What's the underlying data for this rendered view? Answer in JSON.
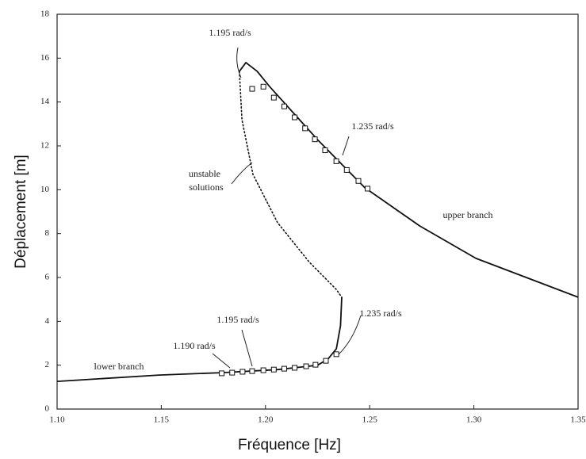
{
  "chart_data": {
    "type": "line",
    "x_label": "Fréquence [Hz]",
    "y_label": "Déplacement [m]",
    "xlim": [
      1.1,
      1.35
    ],
    "ylim": [
      0,
      18
    ],
    "xticks": [
      {
        "value": 1.1,
        "label": "1.10"
      },
      {
        "value": 1.15,
        "label": "1.15"
      },
      {
        "value": 1.2,
        "label": "1.20"
      },
      {
        "value": 1.25,
        "label": "1.25"
      },
      {
        "value": 1.3,
        "label": "1.30"
      },
      {
        "value": 1.35,
        "label": "1.35"
      }
    ],
    "yticks": [
      0,
      2,
      4,
      6,
      8,
      10,
      12,
      14,
      16,
      18
    ],
    "annotations": [
      "1.195 rad/s",
      "1.235 rad/s",
      "unstable",
      "solutions",
      "upper branch",
      "1.235 rad/s",
      "1.195 rad/s",
      "1.190 rad/s",
      "lower branch"
    ],
    "series": [
      {
        "color": "#111",
        "style": "solid",
        "x": [
          1.1875,
          1.1906,
          1.196,
          1.202,
          1.2248,
          1.2476,
          1.274,
          1.301,
          1.35
        ],
        "values": [
          15.4,
          15.8,
          15.4,
          14.7,
          12.3,
          10.1,
          8.35,
          6.87,
          5.1
        ]
      },
      {
        "color": "#111",
        "style": "dotted",
        "x": [
          1.1875,
          1.1887,
          1.194,
          1.2058,
          1.221,
          1.234,
          1.2366
        ],
        "values": [
          15.4,
          13.2,
          10.7,
          8.5,
          6.7,
          5.45,
          5.1
        ]
      },
      {
        "color": "#111",
        "style": "solid",
        "x": [
          1.1,
          1.149,
          1.179,
          1.206,
          1.225,
          1.23,
          1.234,
          1.236,
          1.2366
        ],
        "values": [
          1.26,
          1.55,
          1.66,
          1.8,
          2.0,
          2.28,
          2.75,
          3.8,
          5.1
        ]
      },
      {
        "color": "#111",
        "style": "markers",
        "x": [
          1.1936,
          1.199,
          1.204,
          1.209,
          1.214,
          1.219,
          1.2237,
          1.2286,
          1.234,
          1.239,
          1.2446,
          1.249
        ],
        "values": [
          14.6,
          14.7,
          14.2,
          13.8,
          13.3,
          12.8,
          12.3,
          11.8,
          11.3,
          10.9,
          10.4,
          10.05
        ]
      },
      {
        "color": "#111",
        "style": "markers",
        "x": [
          1.179,
          1.184,
          1.189,
          1.1936,
          1.199,
          1.204,
          1.209,
          1.214,
          1.2195,
          1.224,
          1.229,
          1.234
        ],
        "values": [
          1.63,
          1.66,
          1.7,
          1.73,
          1.77,
          1.8,
          1.84,
          1.88,
          1.95,
          2.02,
          2.2,
          2.5
        ]
      }
    ]
  }
}
